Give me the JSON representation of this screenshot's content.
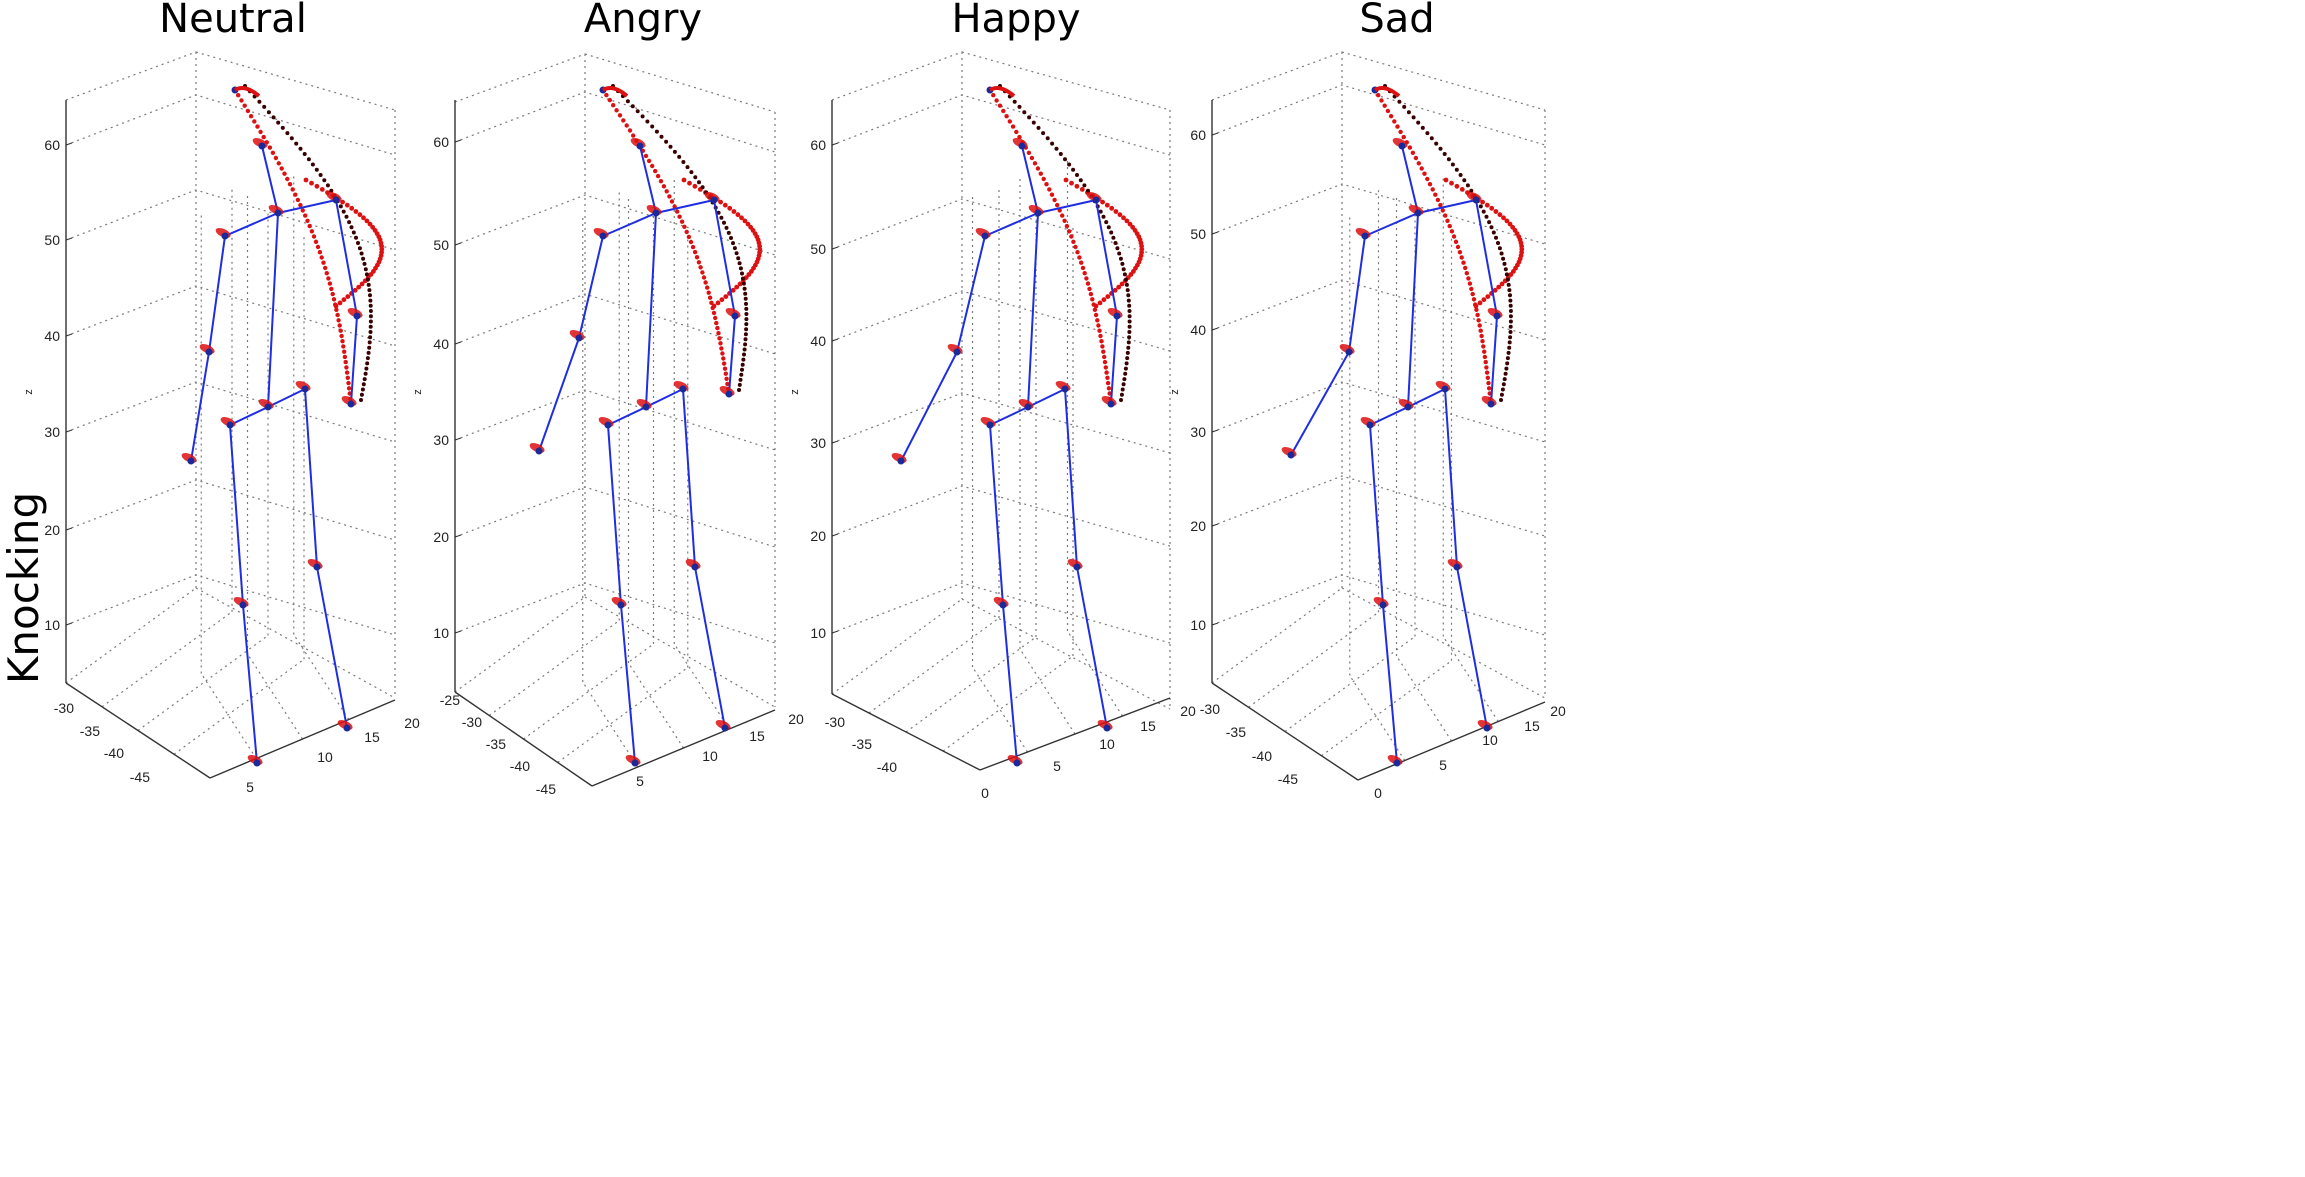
{
  "row_label": "Knocking",
  "colors": {
    "skeleton": "#1f2ee0",
    "joint": "#1a2a9a",
    "trace_red": "#dd1111",
    "trace_dark": "#3a0000",
    "grid": "#7a7a7a",
    "axis": "#333333"
  },
  "chart_data": [
    {
      "type": "scatter",
      "title": "Neutral",
      "zlabel": "z",
      "z_ticks": [
        "60",
        "50",
        "40",
        "30",
        "20",
        "10"
      ],
      "y_ticks": [
        "-30",
        "-35",
        "-40",
        "-45"
      ],
      "x_ticks": [
        "5",
        "10",
        "15",
        "20"
      ],
      "grid": true
    },
    {
      "type": "scatter",
      "title": "Angry",
      "zlabel": "z",
      "z_ticks": [
        "60",
        "50",
        "40",
        "30",
        "20",
        "10"
      ],
      "y_ticks": [
        "-25",
        "-30",
        "-35",
        "-40",
        "-45"
      ],
      "x_ticks": [
        "5",
        "10",
        "15",
        "20"
      ],
      "grid": true
    },
    {
      "type": "scatter",
      "title": "Happy",
      "zlabel": "z",
      "z_ticks": [
        "60",
        "50",
        "40",
        "30",
        "20",
        "10"
      ],
      "y_ticks": [
        "-30",
        "-35",
        "-40"
      ],
      "x_ticks": [
        "0",
        "5",
        "10",
        "15",
        "20"
      ],
      "grid": true
    },
    {
      "type": "scatter",
      "title": "Sad",
      "zlabel": "z",
      "z_ticks": [
        "60",
        "50",
        "40",
        "30",
        "20",
        "10"
      ],
      "y_ticks": [
        "-30",
        "-35",
        "-40",
        "-45"
      ],
      "x_ticks": [
        "0",
        "5",
        "10",
        "15",
        "20"
      ],
      "grid": true
    }
  ]
}
